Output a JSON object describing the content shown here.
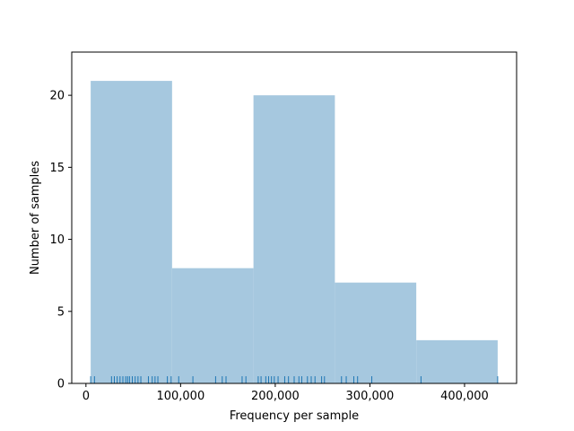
{
  "chart_data": {
    "type": "bar",
    "subtype": "histogram-with-rug",
    "title": "",
    "xlabel": "Frequency per sample",
    "ylabel": "Number of samples",
    "xlim": [
      -15000,
      455000
    ],
    "ylim": [
      0,
      23
    ],
    "grid": false,
    "legend": "none",
    "bar_color": "#a6c8df",
    "rug_color": "#1f77b4",
    "bins": [
      {
        "x0": 5000,
        "x1": 91000,
        "count": 21
      },
      {
        "x0": 91000,
        "x1": 177000,
        "count": 8
      },
      {
        "x0": 177000,
        "x1": 263000,
        "count": 20
      },
      {
        "x0": 263000,
        "x1": 349000,
        "count": 7
      },
      {
        "x0": 349000,
        "x1": 435000,
        "count": 3
      }
    ],
    "rug_values": [
      5000,
      9000,
      27000,
      30000,
      33000,
      36000,
      39000,
      42000,
      44000,
      46000,
      49000,
      52000,
      55000,
      58000,
      66000,
      70000,
      73000,
      76000,
      86000,
      90000,
      98000,
      113000,
      137000,
      144000,
      148000,
      165000,
      169000,
      182000,
      185000,
      190000,
      193000,
      196000,
      199000,
      203000,
      210000,
      214000,
      220000,
      225000,
      228000,
      234000,
      238000,
      242000,
      249000,
      252000,
      270000,
      275000,
      283000,
      287000,
      302000,
      354000,
      435000
    ],
    "x_ticks": [
      {
        "value": 0,
        "label": "0"
      },
      {
        "value": 100000,
        "label": "100,000"
      },
      {
        "value": 200000,
        "label": "200,000"
      },
      {
        "value": 300000,
        "label": "300,000"
      },
      {
        "value": 400000,
        "label": "400,000"
      }
    ],
    "y_ticks": [
      {
        "value": 0,
        "label": "0"
      },
      {
        "value": 5,
        "label": "5"
      },
      {
        "value": 10,
        "label": "10"
      },
      {
        "value": 15,
        "label": "15"
      },
      {
        "value": 20,
        "label": "20"
      }
    ]
  }
}
